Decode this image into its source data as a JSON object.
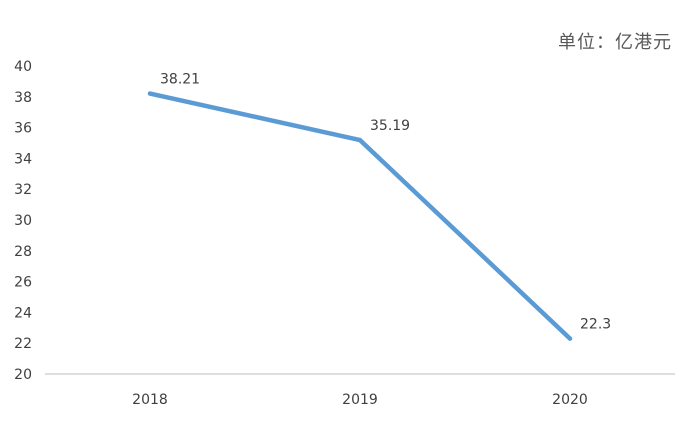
{
  "chart_data": {
    "type": "line",
    "title": "",
    "unit": "单位：亿港元",
    "categories": [
      "2018",
      "2019",
      "2020"
    ],
    "series": [
      {
        "values": [
          38.21,
          35.19,
          22.3
        ],
        "labels": [
          "38.21",
          "35.19",
          "22.3"
        ]
      }
    ],
    "y_ticks": [
      "20",
      "22",
      "24",
      "26",
      "28",
      "30",
      "32",
      "34",
      "36",
      "38",
      "40"
    ],
    "ylim": [
      20,
      40
    ],
    "grid": false,
    "legend": "none",
    "colors": {
      "line": "#5b9bd5",
      "axis": "#bfbfbf",
      "text": "#404040"
    }
  }
}
